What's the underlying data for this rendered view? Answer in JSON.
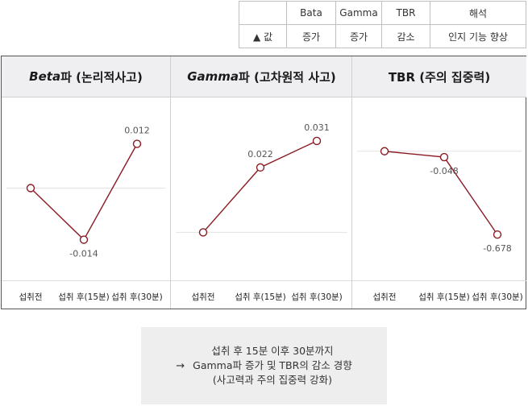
{
  "summary_table": {
    "headers": [
      "",
      "Bata",
      "Gamma",
      "TBR",
      "해석"
    ],
    "row": [
      "▲ 값",
      "증가",
      "증가",
      "감소",
      "인지 기능 향상"
    ]
  },
  "chart_data": [
    {
      "type": "line",
      "title_italic": "Beta",
      "title_rest": "파 (논리적사고)",
      "categories": [
        "섭취전",
        "섭취 후(15분)",
        "섭취 후(30분)"
      ],
      "values": [
        0,
        -0.014,
        0.012
      ],
      "data_labels": [
        "",
        "-0.014",
        "0.012"
      ],
      "ylim": [
        -0.02,
        0.02
      ]
    },
    {
      "type": "line",
      "title_italic": "Gamma",
      "title_rest": "파 (고차원적 사고)",
      "categories": [
        "섭취전",
        "섭취 후(15분)",
        "섭취 후(30분)"
      ],
      "values": [
        0,
        0.022,
        0.031
      ],
      "data_labels": [
        "",
        "0.022",
        "0.031"
      ],
      "ylim": [
        -0.01,
        0.04
      ]
    },
    {
      "type": "line",
      "title_italic": "",
      "title_rest": "TBR (주의 집중력)",
      "categories": [
        "섭취전",
        "섭취 후(15분)",
        "섭취 후(30분)"
      ],
      "values": [
        0,
        -0.048,
        -0.678
      ],
      "data_labels": [
        "",
        "-0.048",
        "-0.678"
      ],
      "ylim": [
        -0.9,
        0.3
      ]
    }
  ],
  "conclusion": {
    "arrow": "→",
    "lines": [
      "섭취 후 15분 이후 30분까지",
      "Gamma파 증가 및 TBR의 감소 경향",
      "(사고력과 주의 집중력 강화)"
    ]
  },
  "colors": {
    "line": "#8b1c24",
    "baseline": "#e2e2e2",
    "header_bg": "#efeff2"
  }
}
